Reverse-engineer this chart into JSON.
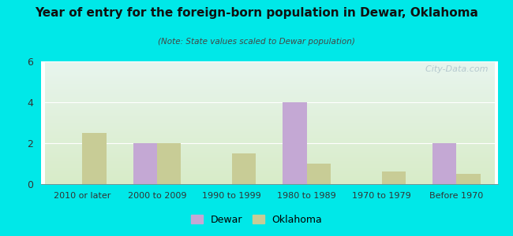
{
  "title": "Year of entry for the foreign-born population in Dewar, Oklahoma",
  "subtitle": "(Note: State values scaled to Dewar population)",
  "categories": [
    "2010 or later",
    "2000 to 2009",
    "1990 to 1999",
    "1980 to 1989",
    "1970 to 1979",
    "Before 1970"
  ],
  "dewar_values": [
    0,
    2,
    0,
    4,
    0,
    2
  ],
  "oklahoma_values": [
    2.5,
    2.0,
    1.5,
    1.0,
    0.6,
    0.5
  ],
  "dewar_color": "#c4a8d4",
  "oklahoma_color": "#c8cc96",
  "background_outer": "#00e8e8",
  "background_inner_top": "#e8f5ee",
  "background_inner_bottom": "#d8ecc8",
  "ylim": [
    0,
    6
  ],
  "yticks": [
    0,
    2,
    4,
    6
  ],
  "bar_width": 0.32,
  "watermark": "  City-Data.com",
  "legend_labels": [
    "Dewar",
    "Oklahoma"
  ]
}
